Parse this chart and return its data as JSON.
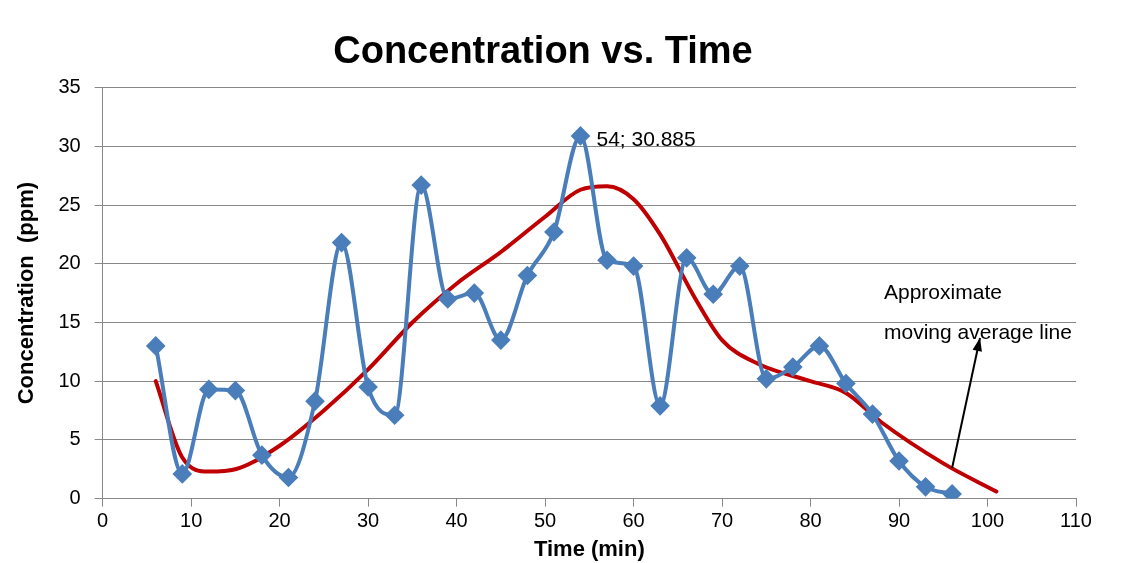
{
  "chart_data": {
    "type": "line",
    "title": "Concentration vs. Time",
    "xlabel": "Time (min)",
    "ylabel": "Concentration  (ppm)",
    "xlim": [
      0,
      110
    ],
    "xticks": [
      0,
      10,
      20,
      30,
      40,
      50,
      60,
      70,
      80,
      90,
      100,
      110
    ],
    "ylim": [
      0,
      35
    ],
    "yticks": [
      0,
      5,
      10,
      15,
      20,
      25,
      30,
      35
    ],
    "grid": "y",
    "legend": false,
    "marker": "diamond",
    "series": [
      {
        "color": "#4a7ebb",
        "x": [
          6,
          9,
          12,
          15,
          18,
          21,
          24,
          27,
          30,
          33,
          36,
          39,
          42,
          45,
          48,
          51,
          54,
          57,
          60,
          63,
          66,
          69,
          72,
          75,
          78,
          81,
          84,
          87,
          90,
          93,
          96
        ],
        "values": [
          13.0,
          2.1,
          9.3,
          9.2,
          3.7,
          1.8,
          8.3,
          21.8,
          9.5,
          7.1,
          26.7,
          17.0,
          17.5,
          13.5,
          19.0,
          22.7,
          30.885,
          20.3,
          19.8,
          7.9,
          20.5,
          17.4,
          19.8,
          10.2,
          11.2,
          13.0,
          9.8,
          7.2,
          3.2,
          1.0,
          0.4
        ]
      },
      {
        "color": "#c00000",
        "marker": "none",
        "x": [
          6,
          9,
          12,
          15,
          20,
          25,
          30,
          35,
          40,
          45,
          50,
          54,
          57,
          60,
          63,
          67,
          70,
          74,
          80,
          84,
          88,
          95,
          101
        ],
        "values": [
          10,
          3.5,
          2.3,
          2.5,
          4.5,
          7.5,
          11,
          15,
          18.3,
          21,
          24,
          26.3,
          26.6,
          25.5,
          22.5,
          17,
          13.5,
          11.5,
          10,
          9,
          6.5,
          3,
          0.6
        ]
      }
    ],
    "annotations": [
      {
        "text": "54; 30.885",
        "x": 54,
        "y": 30.885
      },
      {
        "text": "Approximate moving average line",
        "x": 96,
        "y": 2.6
      }
    ]
  }
}
